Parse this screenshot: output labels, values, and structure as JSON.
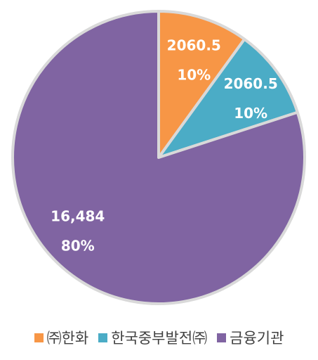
{
  "chart_data": {
    "type": "pie",
    "title": "",
    "slices": [
      {
        "label": "㈜한화",
        "value": 2060.5,
        "value_label": "2060.5",
        "percent_label": "10%",
        "color": "#F79646"
      },
      {
        "label": "한국중부발전㈜",
        "value": 2060.5,
        "value_label": "2060.5",
        "percent_label": "10%",
        "color": "#4BACC6"
      },
      {
        "label": "금융기관",
        "value": 16484,
        "value_label": "16,484",
        "percent_label": "80%",
        "color": "#8064A2"
      }
    ],
    "start": "12 o'clock",
    "direction": "clockwise",
    "legend_position": "bottom",
    "edge_color": "#D9D9D9"
  }
}
